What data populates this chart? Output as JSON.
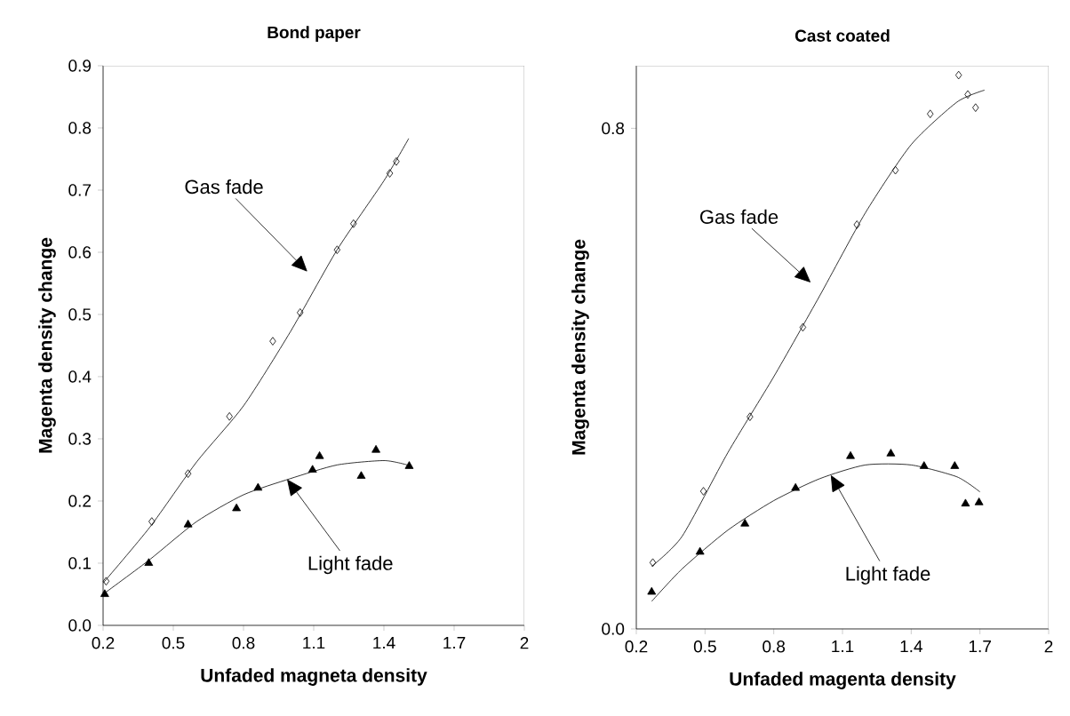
{
  "chart_data": [
    {
      "type": "scatter",
      "title": "Bond paper",
      "xlabel": "Unfaded magneta density",
      "ylabel": "Magenta density change",
      "xlim": [
        0.2,
        2
      ],
      "ylim": [
        0,
        0.9
      ],
      "xticks": [
        0.2,
        0.5,
        0.8,
        1.1,
        1.4,
        1.7,
        2
      ],
      "yticks": [
        {
          "value": 0,
          "label": "0.0"
        },
        0.1,
        0.2,
        0.3,
        0.4,
        0.5,
        0.6,
        0.7,
        0.8,
        0.9
      ],
      "series": [
        {
          "type": "scatter",
          "marker": "diamond",
          "color": "#000000",
          "x": [
            0.213,
            0.408,
            0.563,
            0.74,
            0.925,
            1.042,
            1.2,
            1.27,
            1.425,
            1.453
          ],
          "values": [
            0.071,
            0.167,
            0.244,
            0.336,
            0.457,
            0.503,
            0.604,
            0.646,
            0.727,
            0.746
          ]
        },
        {
          "type": "line",
          "marker": "none",
          "color": "#000000",
          "x": [
            0.2,
            0.4,
            0.6,
            0.8,
            1.0,
            1.2,
            1.4,
            1.506
          ],
          "values": [
            0.068,
            0.158,
            0.263,
            0.353,
            0.472,
            0.604,
            0.715,
            0.783
          ]
        },
        {
          "type": "scatter",
          "marker": "triangle",
          "color": "#000000",
          "x": [
            0.207,
            0.395,
            0.563,
            0.77,
            0.862,
            1.095,
            1.125,
            1.303,
            1.366,
            1.508
          ],
          "values": [
            0.05,
            0.1,
            0.162,
            0.188,
            0.221,
            0.25,
            0.272,
            0.24,
            0.282,
            0.256
          ]
        },
        {
          "type": "line",
          "marker": "none",
          "color": "#000000",
          "x": [
            0.2,
            0.4,
            0.6,
            0.8,
            1.0,
            1.2,
            1.4,
            1.5
          ],
          "values": [
            0.05,
            0.106,
            0.167,
            0.21,
            0.236,
            0.258,
            0.265,
            0.258
          ]
        }
      ],
      "annotations": [
        "Gas fade",
        {
          "text": "Light fade",
          "x": 0.986,
          "y": 0.235
        }
      ]
    },
    {
      "type": "scatter",
      "title": "Cast coated",
      "xlabel": "Unfaded magenta density",
      "ylabel": "Magenta density change",
      "xlim": [
        0.2,
        2
      ],
      "ylim": [
        0,
        0.9
      ],
      "xticks": [
        0.2,
        0.5,
        0.8,
        1.1,
        1.4,
        1.7,
        2
      ],
      "yticks": [
        {
          "value": 0,
          "label": "0.0"
        },
        0.8
      ],
      "series": [
        {
          "type": "scatter",
          "marker": "diamond",
          "color": "#000000",
          "x": [
            0.272,
            0.493,
            0.696,
            0.927,
            1.163,
            1.331,
            1.483,
            1.607,
            1.647,
            1.681
          ],
          "values": [
            0.106,
            0.22,
            0.339,
            0.482,
            0.646,
            0.733,
            0.823,
            0.885,
            0.854,
            0.833
          ]
        },
        {
          "type": "line",
          "marker": "none",
          "color": "#000000",
          "x": [
            0.267,
            0.4,
            0.6,
            0.8,
            1.0,
            1.2,
            1.4,
            1.6,
            1.72
          ],
          "values": [
            0.1,
            0.148,
            0.282,
            0.403,
            0.532,
            0.665,
            0.774,
            0.842,
            0.861
          ]
        },
        {
          "type": "scatter",
          "marker": "triangle",
          "color": "#000000",
          "x": [
            0.267,
            0.478,
            0.674,
            0.895,
            1.135,
            1.311,
            1.456,
            1.59,
            1.637,
            1.696
          ],
          "values": [
            0.059,
            0.123,
            0.168,
            0.225,
            0.276,
            0.28,
            0.26,
            0.26,
            0.2,
            0.202
          ]
        },
        {
          "type": "line",
          "marker": "none",
          "color": "#000000",
          "x": [
            0.267,
            0.4,
            0.6,
            0.8,
            1.0,
            1.2,
            1.4,
            1.6,
            1.7
          ],
          "values": [
            0.044,
            0.096,
            0.158,
            0.205,
            0.24,
            0.262,
            0.262,
            0.243,
            0.219
          ]
        }
      ],
      "annotations": [
        "Gas fade",
        {
          "text": "Light fade",
          "x": 1.049,
          "y": 0.246
        }
      ]
    }
  ]
}
